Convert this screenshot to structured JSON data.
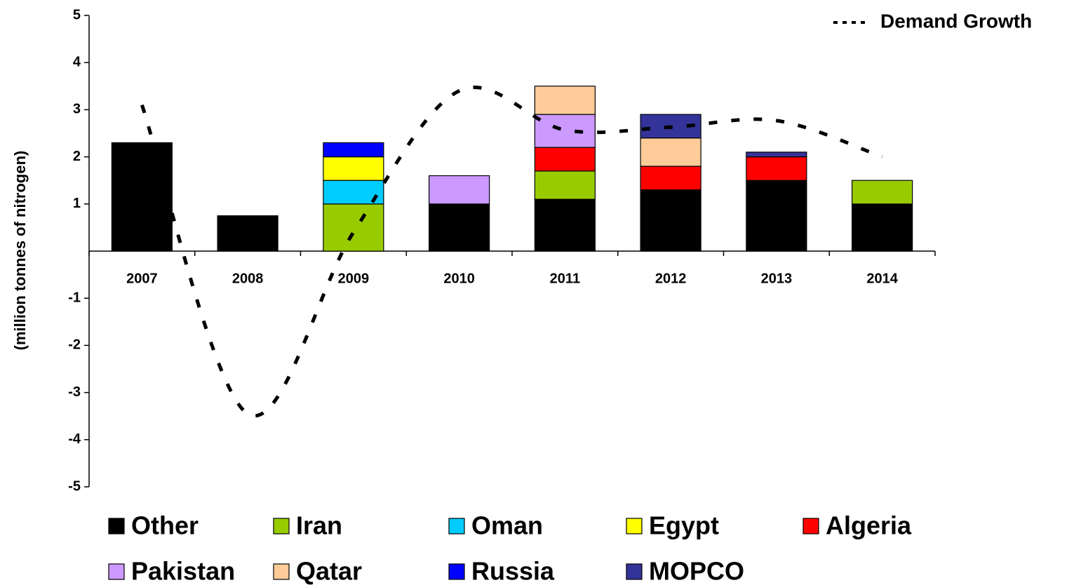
{
  "chart_data": {
    "type": "bar",
    "stacked": true,
    "y_label": "(million  tonnes of nitrogen)",
    "categories": [
      "2007",
      "2008",
      "2009",
      "2010",
      "2011",
      "2012",
      "2013",
      "2014"
    ],
    "ylim": [
      -5,
      5
    ],
    "yticks": [
      -5,
      -4,
      -3,
      -2,
      -1,
      1,
      2,
      3,
      4,
      5
    ],
    "series": [
      {
        "name": "Other",
        "color": "#000000",
        "values": [
          2.3,
          0.75,
          null,
          1.0,
          1.1,
          1.3,
          1.5,
          1.0
        ]
      },
      {
        "name": "Iran",
        "color": "#99cc00",
        "values": [
          null,
          null,
          1.0,
          null,
          0.6,
          null,
          null,
          0.5
        ]
      },
      {
        "name": "Oman",
        "color": "#00ccff",
        "values": [
          null,
          null,
          0.5,
          null,
          null,
          null,
          null,
          null
        ]
      },
      {
        "name": "Egypt",
        "color": "#ffff00",
        "values": [
          null,
          null,
          0.5,
          null,
          null,
          null,
          null,
          null
        ]
      },
      {
        "name": "Algeria",
        "color": "#ff0000",
        "values": [
          null,
          null,
          null,
          null,
          0.5,
          0.5,
          0.5,
          null
        ]
      },
      {
        "name": "Pakistan",
        "color": "#cc99ff",
        "values": [
          null,
          null,
          null,
          0.6,
          0.7,
          null,
          null,
          null
        ]
      },
      {
        "name": "Qatar",
        "color": "#ffcc99",
        "values": [
          null,
          null,
          null,
          null,
          0.6,
          0.6,
          null,
          null
        ]
      },
      {
        "name": "Russia",
        "color": "#0000ff",
        "values": [
          null,
          null,
          0.3,
          null,
          null,
          null,
          null,
          null
        ]
      },
      {
        "name": "MOPCO",
        "color": "#333399",
        "values": [
          null,
          null,
          null,
          null,
          null,
          0.5,
          0.1,
          null
        ]
      },
      {
        "name": "Demand Growth",
        "type": "line",
        "dash": true,
        "color": "#000000",
        "values": [
          3.1,
          -3.45,
          0.4,
          3.4,
          2.57,
          2.63,
          2.77,
          2.0
        ]
      }
    ]
  }
}
